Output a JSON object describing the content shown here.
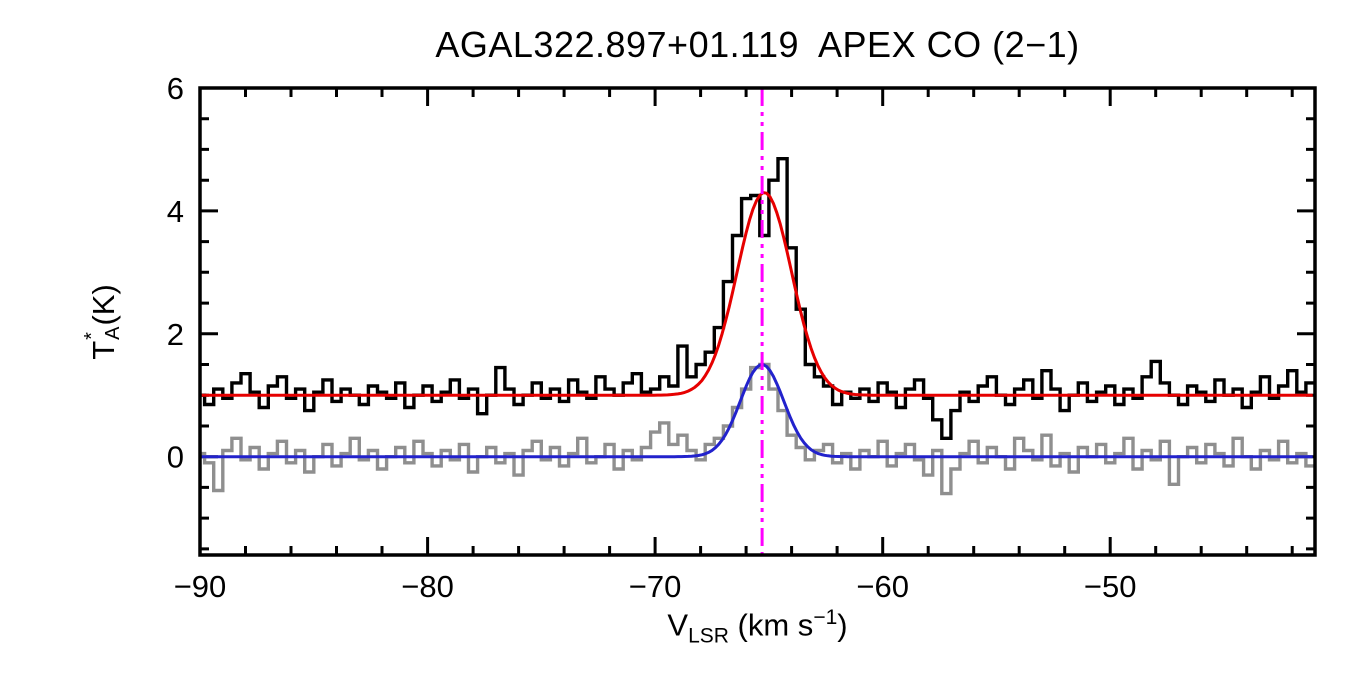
{
  "title": "AGAL322.897+01.119  APEX CO (2−1)",
  "labels": {
    "y": {
      "main": "T",
      "sup": "*",
      "sub": "A",
      "unit": " (K)"
    },
    "x": {
      "main": "V",
      "sub": "LSR",
      "mid": " (km s",
      "sup": "−1",
      "end": ")"
    }
  },
  "chart_data": {
    "type": "line",
    "title": "AGAL322.897+01.119  APEX CO (2−1)",
    "xlabel": "V_LSR (km s^-1)",
    "ylabel": "T_A^* (K)",
    "xlim": [
      -90,
      -41
    ],
    "ylim": [
      -1.6,
      6
    ],
    "xticks": [
      -90,
      -80,
      -70,
      -60,
      -50
    ],
    "yticks": [
      0,
      2,
      4,
      6
    ],
    "minor_x_step": 2,
    "minor_y_step": 0.5,
    "grid": false,
    "legend": "none",
    "x_start": -90,
    "dx": 0.4,
    "colors": {
      "black_spectrum": "#000000",
      "gray_spectrum": "#8f8f8f",
      "red_fit": "#e60000",
      "blue_fit": "#2222cc",
      "vline": "#ff00ff",
      "frame": "#000000"
    },
    "series": [
      {
        "name": "gray-spectrum",
        "style": "histogram",
        "color": "#8f8f8f",
        "values": [
          0.05,
          -0.1,
          -0.55,
          0.1,
          0.3,
          -0.05,
          0.15,
          -0.2,
          0.05,
          0.25,
          -0.1,
          0.1,
          -0.25,
          0.0,
          0.2,
          -0.15,
          0.05,
          0.3,
          -0.05,
          0.1,
          -0.2,
          0.0,
          0.15,
          -0.1,
          0.25,
          0.05,
          -0.15,
          0.1,
          -0.05,
          0.2,
          -0.25,
          0.0,
          0.15,
          -0.1,
          0.05,
          -0.3,
          0.1,
          0.25,
          -0.05,
          0.15,
          -0.15,
          0.05,
          0.3,
          -0.1,
          0.0,
          0.2,
          -0.2,
          0.1,
          -0.05,
          0.15,
          0.4,
          0.55,
          0.2,
          0.35,
          0.1,
          -0.05,
          0.2,
          0.3,
          0.5,
          0.8,
          1.1,
          1.45,
          1.5,
          1.1,
          0.75,
          0.35,
          0.15,
          -0.05,
          0.1,
          0.2,
          -0.1,
          0.05,
          -0.2,
          0.1,
          0.0,
          0.25,
          -0.15,
          0.05,
          0.2,
          -0.05,
          -0.3,
          0.1,
          -0.6,
          -0.2,
          0.05,
          0.25,
          -0.1,
          0.15,
          0.0,
          -0.2,
          0.3,
          0.1,
          -0.05,
          0.35,
          -0.15,
          0.05,
          -0.25,
          0.15,
          0.0,
          0.2,
          -0.1,
          0.05,
          0.3,
          -0.2,
          0.1,
          -0.05,
          0.25,
          -0.45,
          0.0,
          0.15,
          -0.1,
          0.2,
          0.05,
          -0.15,
          0.3,
          0.0,
          -0.2,
          0.1,
          -0.05,
          0.25,
          -0.1,
          0.05,
          -0.15
        ]
      },
      {
        "name": "blue-gaussian-fit",
        "style": "gaussian",
        "color": "#2222cc",
        "baseline": 0.0,
        "amplitude": 1.5,
        "center": -65.3,
        "sigma": 0.95
      },
      {
        "name": "black-spectrum",
        "style": "histogram",
        "color": "#000000",
        "values": [
          1.0,
          0.85,
          1.1,
          0.95,
          1.2,
          1.35,
          1.05,
          0.8,
          1.15,
          1.3,
          0.95,
          1.1,
          0.75,
          1.05,
          1.25,
          0.9,
          1.1,
          1.0,
          0.85,
          1.15,
          1.05,
          0.95,
          1.2,
          0.8,
          1.0,
          1.15,
          0.9,
          1.05,
          1.25,
          0.95,
          1.1,
          0.7,
          1.0,
          1.45,
          1.1,
          0.85,
          1.0,
          1.2,
          0.95,
          1.1,
          0.9,
          1.25,
          1.05,
          0.95,
          1.3,
          1.1,
          1.0,
          1.2,
          1.35,
          1.05,
          1.1,
          1.3,
          1.15,
          1.8,
          1.3,
          1.5,
          1.7,
          2.1,
          2.85,
          3.6,
          4.2,
          4.25,
          3.6,
          4.5,
          4.85,
          3.4,
          2.4,
          1.5,
          1.3,
          1.15,
          0.85,
          1.05,
          0.95,
          1.1,
          0.9,
          1.2,
          1.05,
          0.8,
          1.1,
          1.25,
          0.95,
          0.6,
          0.3,
          0.75,
          1.05,
          0.9,
          1.15,
          1.3,
          1.0,
          0.85,
          1.1,
          1.25,
          0.95,
          1.4,
          1.1,
          0.75,
          1.0,
          1.2,
          0.9,
          1.05,
          1.15,
          0.85,
          1.1,
          0.95,
          1.3,
          1.55,
          1.2,
          1.0,
          0.85,
          1.15,
          1.05,
          0.9,
          1.25,
          1.0,
          1.1,
          0.8,
          1.05,
          1.3,
          0.95,
          1.15,
          1.4,
          1.05,
          1.2
        ]
      },
      {
        "name": "red-gaussian-fit",
        "style": "gaussian",
        "color": "#e60000",
        "baseline": 1.0,
        "amplitude": 3.3,
        "center": -65.2,
        "sigma": 1.2
      }
    ],
    "vline": {
      "x": -65.3,
      "color": "#ff00ff",
      "style": "dash-dot-dot"
    }
  }
}
